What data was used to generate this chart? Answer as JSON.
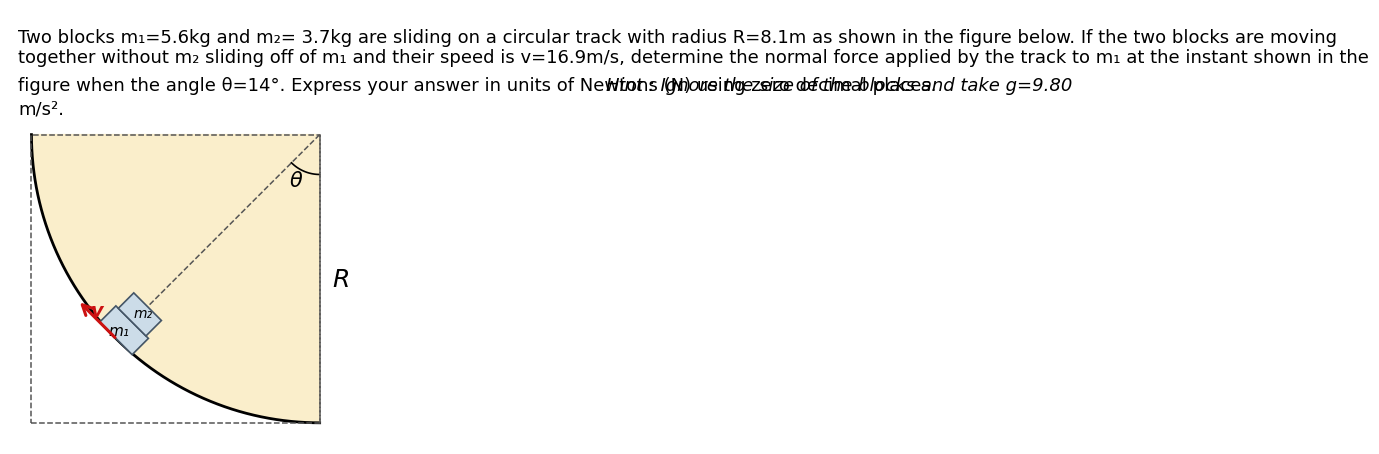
{
  "text_line1": "Two blocks m₁=5.6kg and m₂= 3.7kg are sliding on a circular track with radius R=8.1m as shown in the figure below. If the two blocks are moving",
  "text_line2": "together without m₂ sliding off of m₁ and their speed is v=16.9m/s, determine the normal force applied by the track to m₁ at the instant shown in the",
  "text_line3_normal": "figure when the angle θ=14°. Express your answer in units of Newtons (N) using zero decimal places.",
  "text_line3_hint": "Hint : Ignore the size of the blocks and take g=9.80",
  "text_line4": "m/s².",
  "track_fill": "#faeecb",
  "block_fill": "#ccdce8",
  "block_edge": "#445566",
  "arrow_color": "#cc1111",
  "dashed_color": "#555555",
  "theta_label": "θ",
  "R_label": "R",
  "m1_label": "m₁",
  "m2_label": "m₂",
  "v_label": "v",
  "background_color": "#ffffff",
  "font_size_main": 13.0,
  "font_size_diagram": 13
}
